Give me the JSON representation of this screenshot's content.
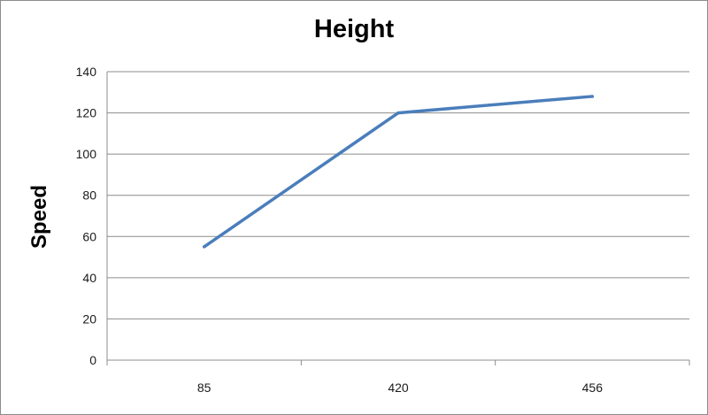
{
  "chart_data": {
    "type": "line",
    "title": "Height",
    "xlabel": "",
    "ylabel": "Speed",
    "categories": [
      "85",
      "420",
      "456"
    ],
    "series": [
      {
        "values": [
          55,
          120,
          128
        ]
      }
    ],
    "ylim": [
      0,
      140
    ],
    "yticks": [
      0,
      20,
      40,
      60,
      80,
      100,
      120,
      140
    ],
    "grid": true,
    "legend": "none",
    "colors": {
      "line": "#4a7ebb",
      "grid": "#8c8c8c",
      "axis": "#8c8c8c"
    }
  }
}
